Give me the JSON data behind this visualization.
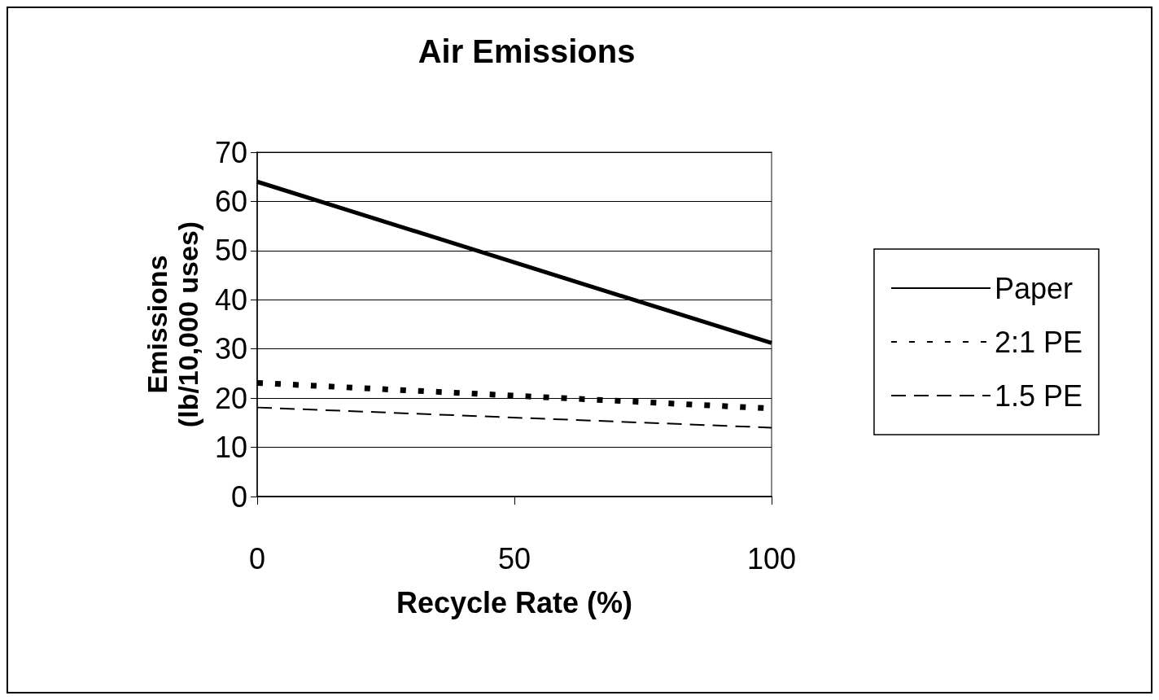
{
  "chart_data": {
    "type": "line",
    "title": "Air Emissions",
    "xlabel": "Recycle Rate (%)",
    "ylabel": "Emissions\n(lb/10,000 uses)",
    "x": [
      0,
      100
    ],
    "series": [
      {
        "name": "Paper",
        "color": "#000000",
        "values": [
          64,
          31.2
        ],
        "line_style": "solid"
      },
      {
        "name": "2:1 PE",
        "color": "#000000",
        "values": [
          23.1,
          17.9
        ],
        "line_style": "dotted"
      },
      {
        "name": "1.5 PE",
        "color": "#000000",
        "values": [
          18.1,
          14
        ],
        "line_style": "dashed"
      }
    ],
    "xlim": [
      0,
      100
    ],
    "xticks": [
      0,
      50,
      100
    ],
    "ylim": [
      0,
      70
    ],
    "yticks": [
      0,
      10,
      20,
      30,
      40,
      50,
      60,
      70
    ],
    "grid": "y",
    "legend": "right",
    "marker": "none"
  }
}
